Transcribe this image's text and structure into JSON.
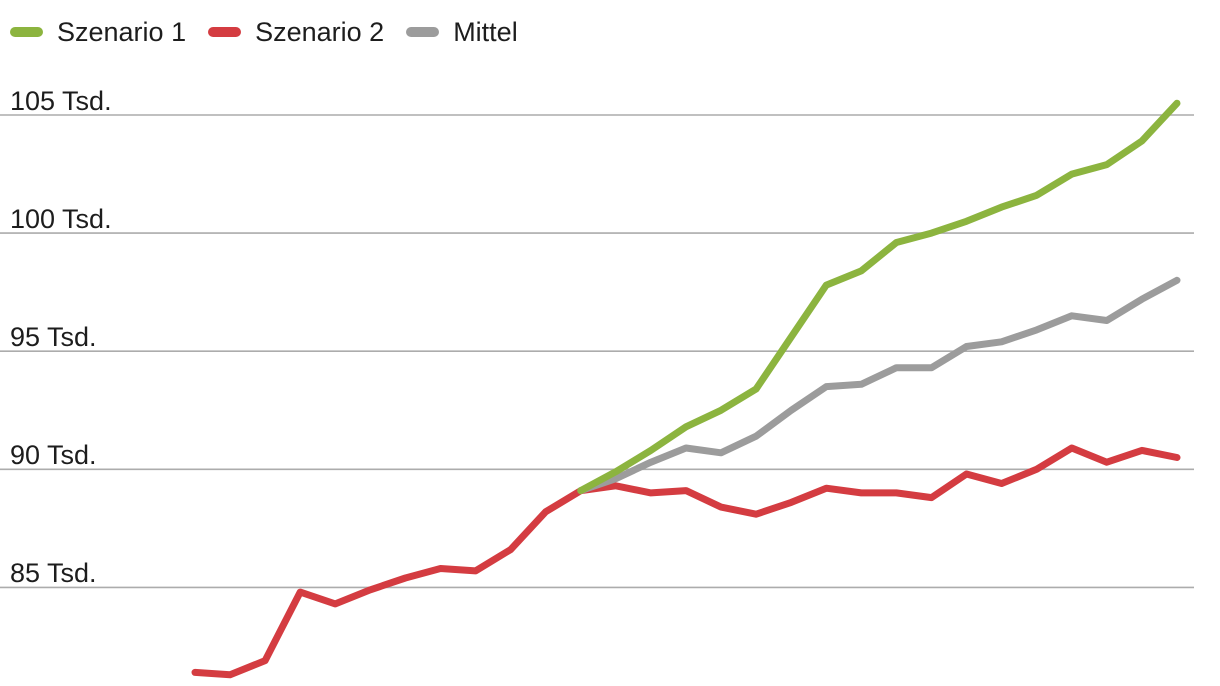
{
  "page": {
    "background": "#ffffff"
  },
  "legend": {
    "items": [
      {
        "label": "Szenario 1",
        "color": "#8CB43F"
      },
      {
        "label": "Szenario 2",
        "color": "#D43C41"
      },
      {
        "label": "Mittel",
        "color": "#9C9C9C"
      }
    ]
  },
  "chart_data": {
    "type": "line",
    "title": "",
    "legend_position": "top-left",
    "x_axis": {
      "tick_labels_visible": false,
      "n_points": 29
    },
    "y_axis": {
      "unit": "Tsd.",
      "gridlines": true,
      "gridline_color": "#ACACAC",
      "visible_range_approx": [
        80.8,
        106.0
      ],
      "ticks": [
        {
          "value": 105,
          "label": "105 Tsd."
        },
        {
          "value": 100,
          "label": "100 Tsd."
        },
        {
          "value": 95,
          "label": "95 Tsd."
        },
        {
          "value": 90,
          "label": "90 Tsd."
        },
        {
          "value": 85,
          "label": "85 Tsd."
        }
      ]
    },
    "series": [
      {
        "name": "Szenario 1",
        "color": "#8CB43F",
        "z": 3,
        "values": [
          null,
          null,
          null,
          null,
          null,
          null,
          null,
          null,
          null,
          null,
          null,
          89.1,
          89.9,
          90.8,
          91.8,
          92.5,
          93.4,
          95.6,
          97.8,
          98.4,
          99.6,
          100.0,
          100.5,
          101.1,
          101.6,
          102.5,
          102.9,
          103.9,
          105.5
        ]
      },
      {
        "name": "Szenario 2",
        "color": "#D43C41",
        "z": 1,
        "values": [
          81.4,
          81.3,
          81.9,
          84.8,
          84.3,
          84.9,
          85.4,
          85.8,
          85.7,
          86.6,
          88.2,
          89.1,
          89.3,
          89.0,
          89.1,
          88.4,
          88.1,
          88.6,
          89.2,
          89.0,
          89.0,
          88.8,
          89.8,
          89.4,
          90.0,
          90.9,
          90.3,
          90.8,
          90.5
        ]
      },
      {
        "name": "Mittel",
        "color": "#9C9C9C",
        "z": 2,
        "values": [
          null,
          null,
          null,
          null,
          null,
          null,
          null,
          null,
          null,
          null,
          null,
          89.1,
          89.6,
          90.3,
          90.9,
          90.7,
          91.4,
          92.5,
          93.5,
          93.6,
          94.3,
          94.3,
          95.2,
          95.4,
          95.9,
          96.5,
          96.3,
          97.2,
          98.0
        ]
      }
    ]
  }
}
